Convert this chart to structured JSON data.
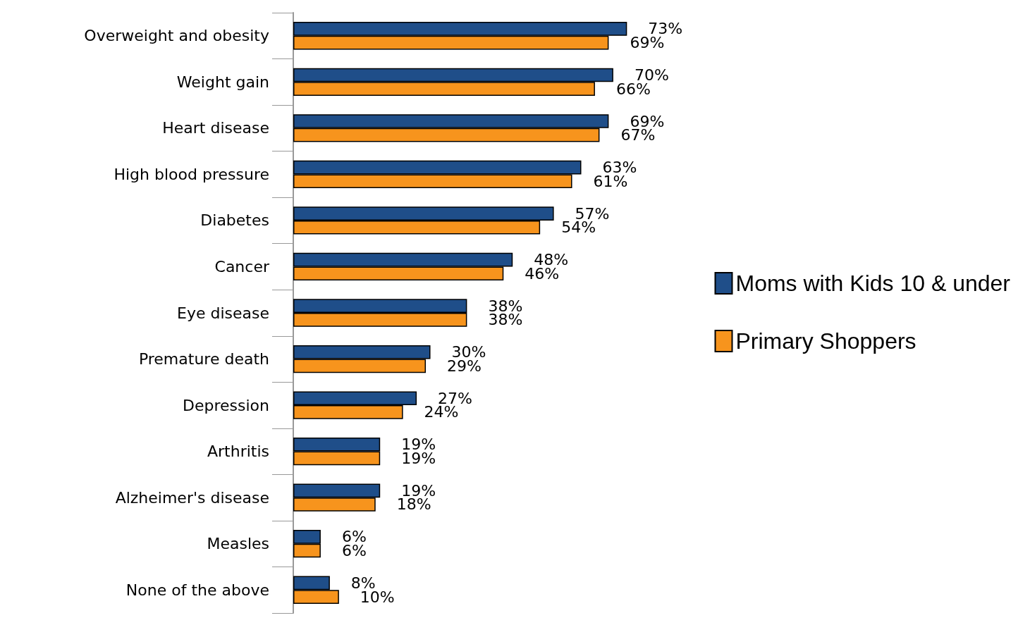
{
  "chart_data": {
    "type": "bar",
    "orientation": "horizontal",
    "categories": [
      "Overweight and obesity",
      "Weight gain",
      "Heart disease",
      "High blood pressure",
      "Diabetes",
      "Cancer",
      "Eye disease",
      "Premature death",
      "Depression",
      "Arthritis",
      "Alzheimer's disease",
      "Measles",
      "None of the above"
    ],
    "series": [
      {
        "name": "Moms with Kids 10 & under",
        "color": "#1f4e89",
        "values": [
          73,
          70,
          69,
          63,
          57,
          48,
          38,
          30,
          27,
          19,
          19,
          6,
          8
        ],
        "value_labels": [
          "73%",
          "70%",
          "69%",
          "63%",
          "57%",
          "48%",
          "38%",
          "30%",
          "27%",
          "19%",
          "19%",
          "6%",
          "8%"
        ]
      },
      {
        "name": "Primary Shoppers",
        "color": "#f7941d",
        "values": [
          69,
          66,
          67,
          61,
          54,
          46,
          38,
          29,
          24,
          19,
          18,
          6,
          10
        ],
        "value_labels": [
          "69%",
          "66%",
          "67%",
          "61%",
          "54%",
          "46%",
          "38%",
          "29%",
          "24%",
          "19%",
          "18%",
          "6%",
          "10%"
        ]
      }
    ],
    "legend": "right"
  }
}
